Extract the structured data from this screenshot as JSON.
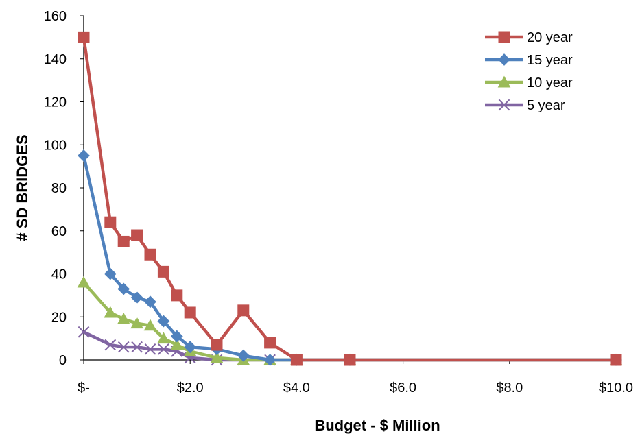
{
  "chart_data": {
    "type": "line",
    "xlabel": "Budget - $ Million",
    "ylabel": "# SD BRIDGES",
    "xlim": [
      0,
      10
    ],
    "ylim": [
      0,
      160
    ],
    "x_ticks": [
      {
        "value": 0,
        "label": "$-"
      },
      {
        "value": 2,
        "label": "$2.0"
      },
      {
        "value": 4,
        "label": "$4.0"
      },
      {
        "value": 6,
        "label": "$6.0"
      },
      {
        "value": 8,
        "label": "$8.0"
      },
      {
        "value": 10,
        "label": "$10.0"
      }
    ],
    "y_ticks": [
      0,
      20,
      40,
      60,
      80,
      100,
      120,
      140,
      160
    ],
    "grid": false,
    "legend_position": "top-right",
    "x": [
      0,
      0.5,
      0.75,
      1.0,
      1.25,
      1.5,
      1.75,
      2.0,
      2.5,
      3.0,
      3.5,
      4.0,
      5.0,
      10.0
    ],
    "series": [
      {
        "name": "20 year",
        "color": "#C0504D",
        "marker": "square",
        "values": [
          150,
          64,
          55,
          58,
          49,
          41,
          30,
          22,
          7,
          23,
          8,
          0,
          0,
          0
        ]
      },
      {
        "name": "15 year",
        "color": "#4F81BD",
        "marker": "diamond",
        "values": [
          95,
          40,
          33,
          29,
          27,
          18,
          11,
          6,
          5,
          2,
          0,
          0,
          0,
          0
        ]
      },
      {
        "name": "10 year",
        "color": "#9BBB59",
        "marker": "triangle",
        "values": [
          36,
          22,
          19,
          17,
          16,
          10,
          7,
          4,
          1,
          0,
          0,
          0,
          0,
          0
        ]
      },
      {
        "name": "5 year",
        "color": "#8064A2",
        "marker": "x",
        "values": [
          13,
          7,
          6,
          6,
          5,
          5,
          4,
          1,
          0,
          0,
          0,
          0,
          0,
          0
        ]
      }
    ]
  }
}
